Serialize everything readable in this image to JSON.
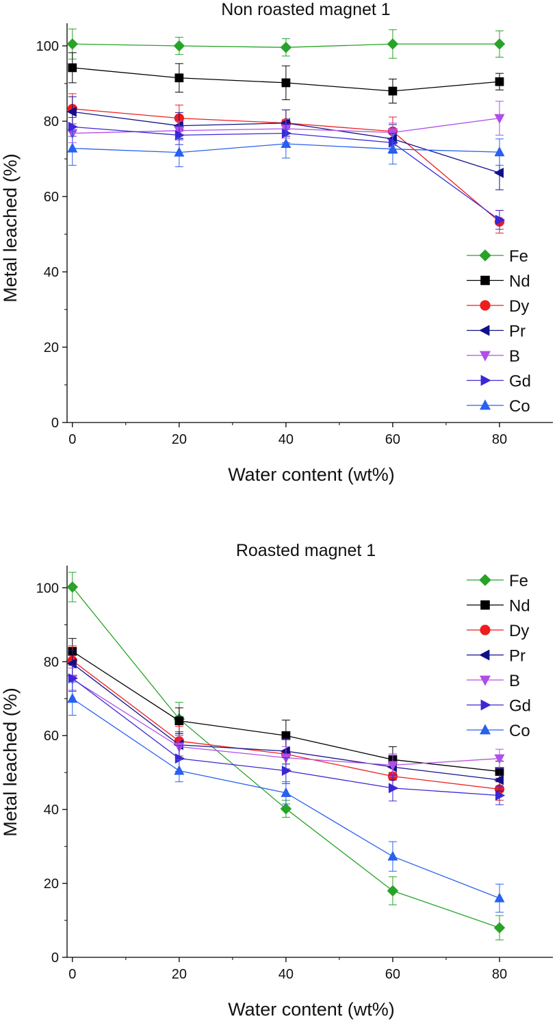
{
  "chart_data": [
    {
      "type": "line",
      "title": "Non roasted magnet 1",
      "xlabel": "Water content (wt%)",
      "ylabel": "Metal leached (%)",
      "xlim": [
        -1,
        90
      ],
      "ylim": [
        0,
        106
      ],
      "xticks": [
        0,
        20,
        40,
        60,
        80
      ],
      "yticks": [
        0,
        20,
        40,
        60,
        80,
        100
      ],
      "legend_position": "right",
      "x": [
        0,
        20,
        40,
        60,
        80
      ],
      "series": [
        {
          "name": "Fe",
          "marker": "diamond",
          "color": "#27a327",
          "values": [
            100.5,
            100.0,
            99.6,
            100.5,
            100.5
          ],
          "errors": [
            4.0,
            2.3,
            2.3,
            3.8,
            3.5
          ]
        },
        {
          "name": "Nd",
          "marker": "square",
          "color": "#000000",
          "values": [
            94.2,
            91.5,
            90.2,
            88.0,
            90.5
          ],
          "errors": [
            4.0,
            3.8,
            4.5,
            3.2,
            2.2
          ]
        },
        {
          "name": "Dy",
          "marker": "circle",
          "color": "#ee1c1c",
          "values": [
            83.3,
            80.8,
            79.5,
            77.3,
            53.3
          ],
          "errors": [
            4.0,
            3.5,
            3.5,
            3.8,
            3.0
          ]
        },
        {
          "name": "Pr",
          "marker": "triangle-left",
          "color": "#10108a",
          "values": [
            82.5,
            78.8,
            79.5,
            75.3,
            66.3
          ],
          "errors": [
            4.0,
            3.5,
            3.5,
            3.8,
            4.5
          ]
        },
        {
          "name": "B",
          "marker": "triangle-down",
          "color": "#b04ee8",
          "values": [
            76.8,
            77.5,
            78.0,
            77.0,
            80.8
          ],
          "errors": [
            2.5,
            2.5,
            2.5,
            2.5,
            4.5
          ]
        },
        {
          "name": "Gd",
          "marker": "triangle-right",
          "color": "#3a28d6",
          "values": [
            78.5,
            76.3,
            76.8,
            74.3,
            53.8
          ],
          "errors": [
            2.5,
            2.5,
            2.5,
            2.5,
            2.5
          ]
        },
        {
          "name": "Co",
          "marker": "triangle-up",
          "color": "#2860f0",
          "values": [
            72.8,
            71.7,
            74.0,
            72.6,
            71.8
          ],
          "errors": [
            4.5,
            3.8,
            3.8,
            4.0,
            3.5
          ]
        }
      ]
    },
    {
      "type": "line",
      "title": "Roasted magnet 1",
      "xlabel": "Water content (wt%)",
      "ylabel": "Metal leached (%)",
      "xlim": [
        -1,
        90
      ],
      "ylim": [
        0,
        106
      ],
      "xticks": [
        0,
        20,
        40,
        60,
        80
      ],
      "yticks": [
        0,
        20,
        40,
        60,
        80,
        100
      ],
      "legend_position": "top-right",
      "x": [
        0,
        20,
        40,
        60,
        80
      ],
      "series": [
        {
          "name": "Fe",
          "marker": "diamond",
          "color": "#27a327",
          "values": [
            100.2,
            64.5,
            40.2,
            18.0,
            8.0
          ],
          "errors": [
            4.0,
            4.5,
            2.3,
            3.8,
            3.3
          ]
        },
        {
          "name": "Nd",
          "marker": "square",
          "color": "#000000",
          "values": [
            82.8,
            64.0,
            60.0,
            53.5,
            50.3
          ],
          "errors": [
            3.5,
            3.5,
            4.2,
            3.5,
            2.8
          ]
        },
        {
          "name": "Dy",
          "marker": "circle",
          "color": "#ee1c1c",
          "values": [
            80.3,
            58.5,
            55.0,
            49.0,
            45.5
          ],
          "errors": [
            4.0,
            4.0,
            4.0,
            3.5,
            3.0
          ]
        },
        {
          "name": "Pr",
          "marker": "triangle-left",
          "color": "#10108a",
          "values": [
            79.5,
            57.5,
            55.8,
            51.5,
            48.0
          ],
          "errors": [
            3.5,
            3.5,
            3.5,
            3.5,
            3.0
          ]
        },
        {
          "name": "B",
          "marker": "triangle-down",
          "color": "#b04ee8",
          "values": [
            75.3,
            57.0,
            54.0,
            52.0,
            53.8
          ],
          "errors": [
            3.0,
            3.0,
            3.0,
            3.0,
            2.5
          ]
        },
        {
          "name": "Gd",
          "marker": "triangle-right",
          "color": "#3a28d6",
          "values": [
            75.5,
            53.8,
            50.5,
            45.8,
            43.8
          ],
          "errors": [
            3.5,
            3.5,
            3.5,
            3.5,
            2.5
          ]
        },
        {
          "name": "Co",
          "marker": "triangle-up",
          "color": "#2860f0",
          "values": [
            70.0,
            50.5,
            44.5,
            27.3,
            16.0
          ],
          "errors": [
            4.5,
            3.0,
            3.0,
            4.0,
            3.8
          ]
        }
      ]
    }
  ]
}
